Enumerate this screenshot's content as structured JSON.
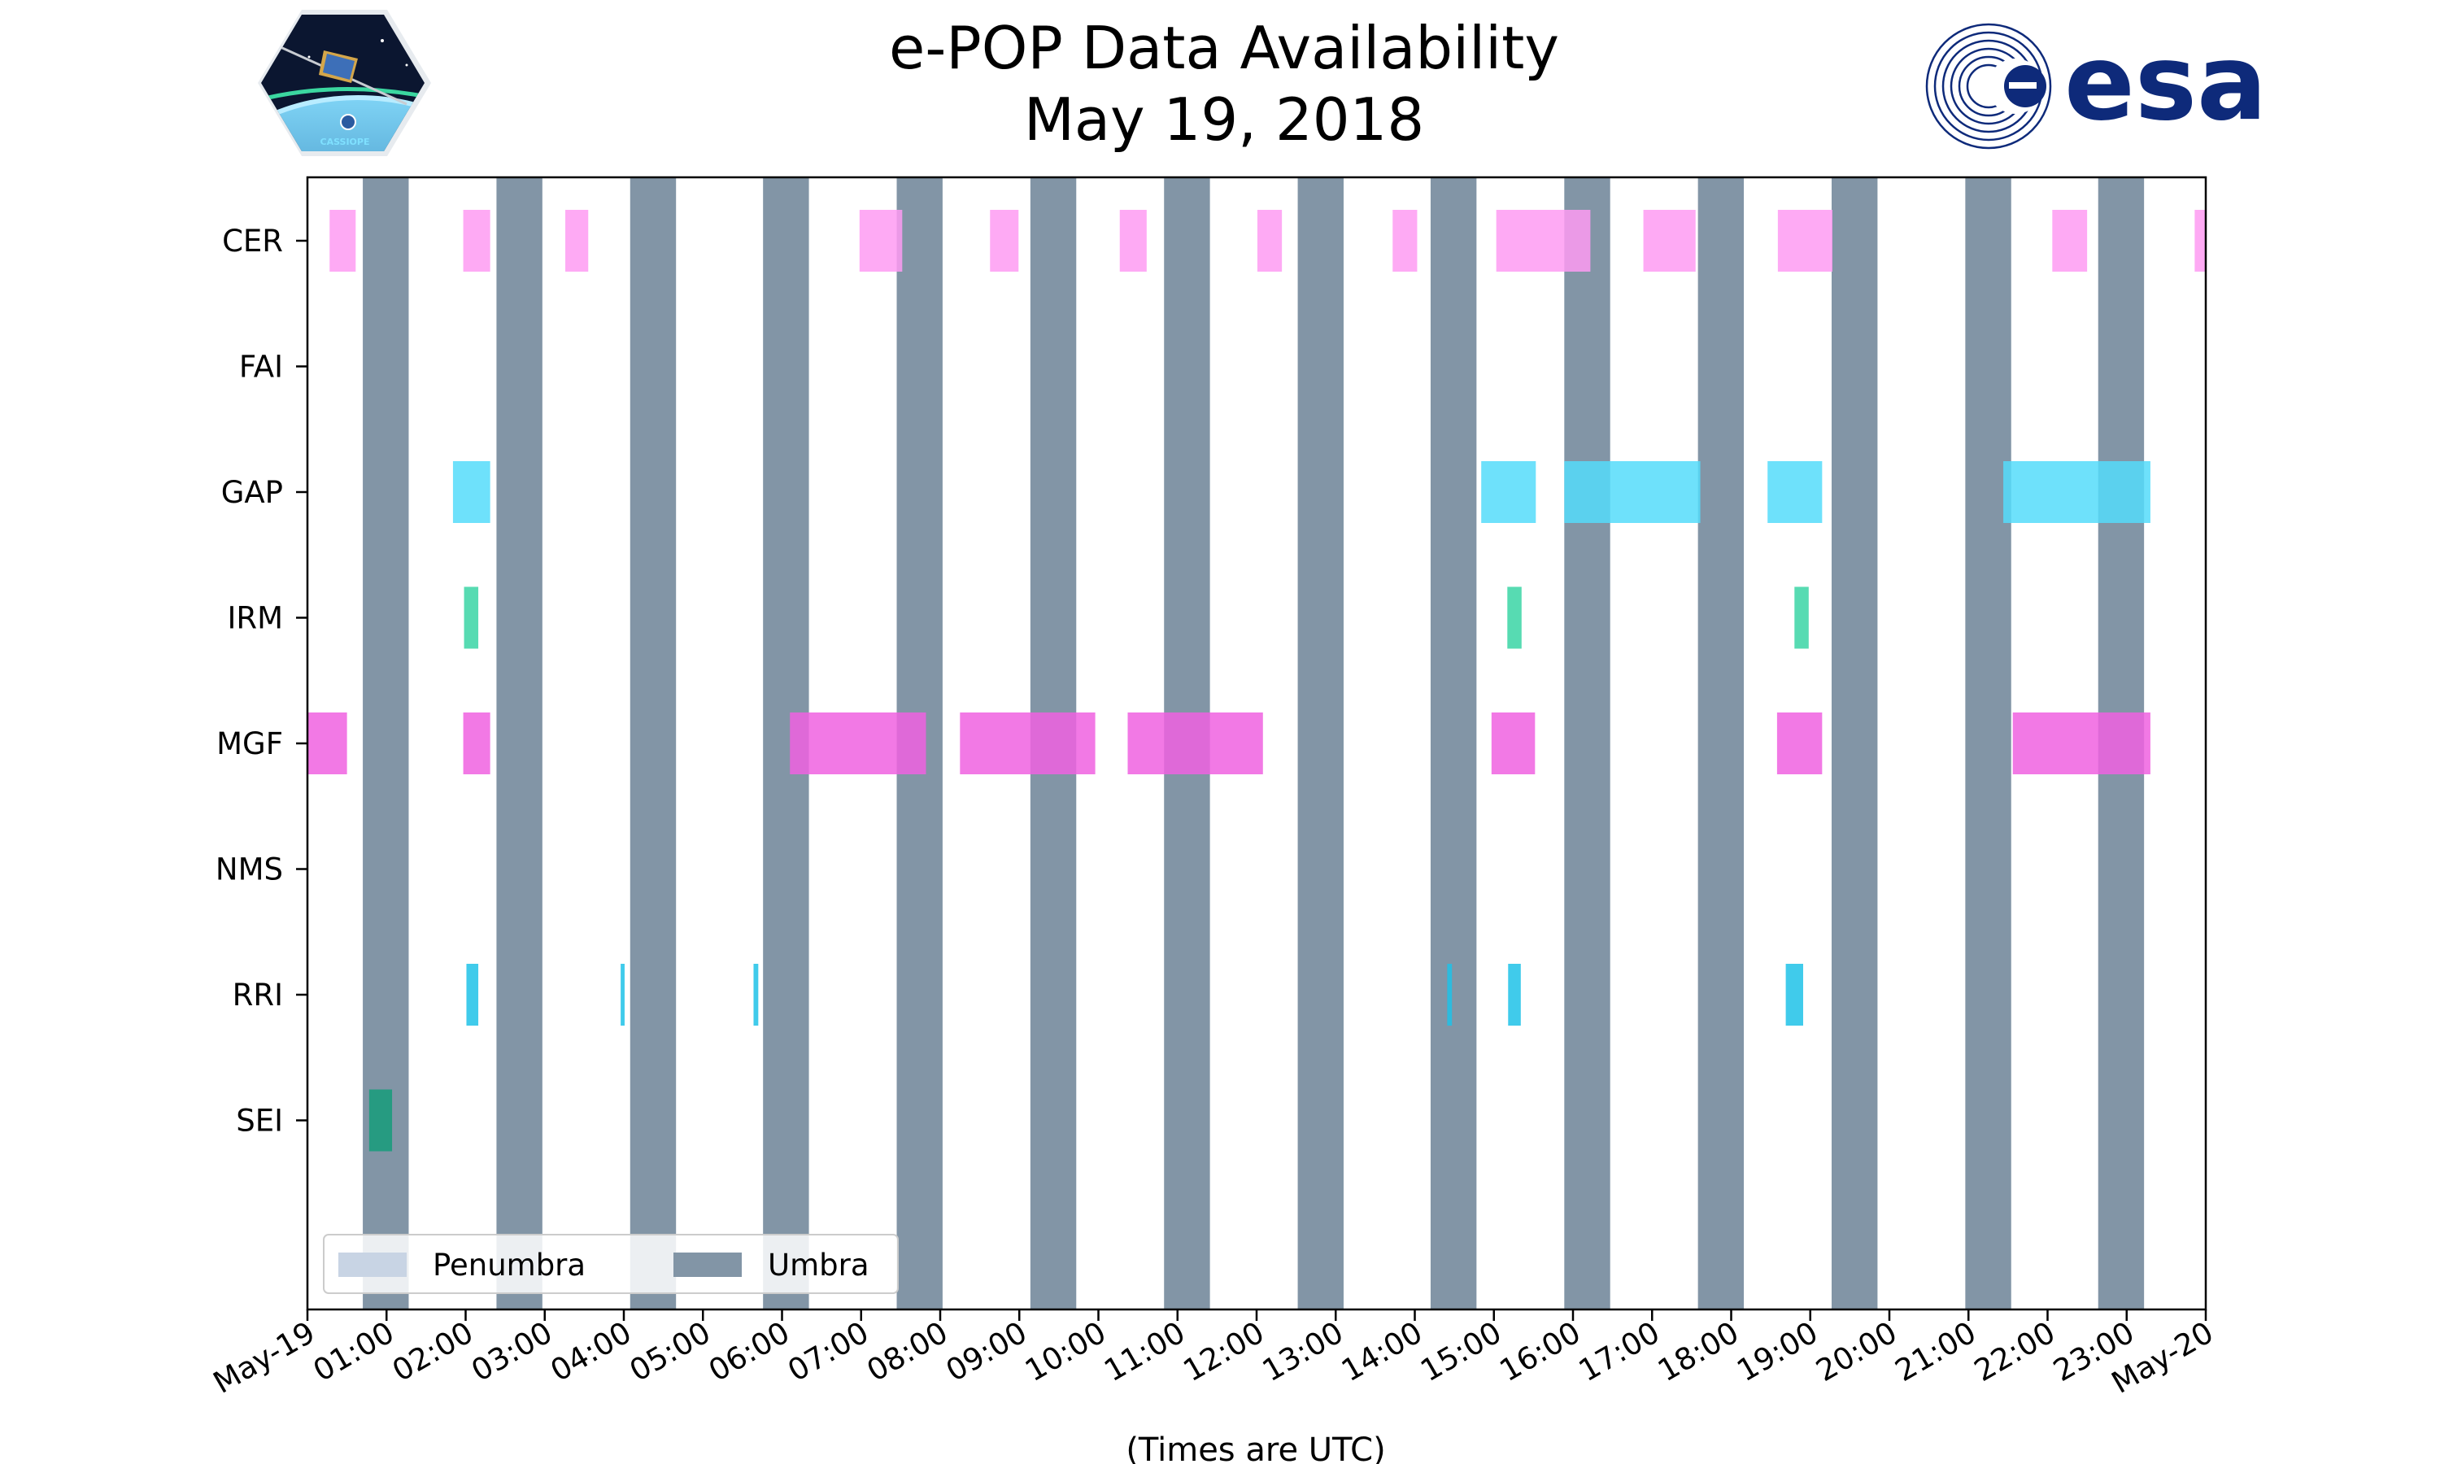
{
  "chart_data": {
    "type": "timeline",
    "title": "e-POP Data Availability",
    "subtitle": "May 19, 2018",
    "xlabel": "(Times are UTC)",
    "x_unit": "hours since 2018-05-19 00:00 UTC",
    "xlim": [
      0,
      24
    ],
    "x_ticks": [
      {
        "value": 0,
        "label": "May-19"
      },
      {
        "value": 1,
        "label": "01:00"
      },
      {
        "value": 2,
        "label": "02:00"
      },
      {
        "value": 3,
        "label": "03:00"
      },
      {
        "value": 4,
        "label": "04:00"
      },
      {
        "value": 5,
        "label": "05:00"
      },
      {
        "value": 6,
        "label": "06:00"
      },
      {
        "value": 7,
        "label": "07:00"
      },
      {
        "value": 8,
        "label": "08:00"
      },
      {
        "value": 9,
        "label": "09:00"
      },
      {
        "value": 10,
        "label": "10:00"
      },
      {
        "value": 11,
        "label": "11:00"
      },
      {
        "value": 12,
        "label": "12:00"
      },
      {
        "value": 13,
        "label": "13:00"
      },
      {
        "value": 14,
        "label": "14:00"
      },
      {
        "value": 15,
        "label": "15:00"
      },
      {
        "value": 16,
        "label": "16:00"
      },
      {
        "value": 17,
        "label": "17:00"
      },
      {
        "value": 18,
        "label": "18:00"
      },
      {
        "value": 19,
        "label": "19:00"
      },
      {
        "value": 20,
        "label": "20:00"
      },
      {
        "value": 21,
        "label": "21:00"
      },
      {
        "value": 22,
        "label": "22:00"
      },
      {
        "value": 23,
        "label": "23:00"
      },
      {
        "value": 24,
        "label": "May-20"
      }
    ],
    "instruments": [
      "CER",
      "FAI",
      "GAP",
      "IRM",
      "MGF",
      "NMS",
      "RRI",
      "SEI"
    ],
    "legend": {
      "placement": "lower-left",
      "entries": [
        {
          "label": "Penumbra",
          "color": "#c8d4e4"
        },
        {
          "label": "Umbra",
          "color": "#8295a6"
        }
      ]
    },
    "umbra": [
      [
        0.7,
        1.28
      ],
      [
        2.39,
        2.97
      ],
      [
        4.08,
        4.66
      ],
      [
        5.76,
        6.34
      ],
      [
        7.45,
        8.03
      ],
      [
        9.14,
        9.72
      ],
      [
        10.83,
        11.41
      ],
      [
        12.52,
        13.1
      ],
      [
        14.2,
        14.78
      ],
      [
        15.89,
        16.47
      ],
      [
        17.58,
        18.16
      ],
      [
        19.27,
        19.85
      ],
      [
        20.96,
        21.54
      ],
      [
        22.64,
        23.22
      ]
    ],
    "series": [
      {
        "name": "CER",
        "color": "#fe9bf2",
        "intervals": [
          [
            0.28,
            0.61
          ],
          [
            1.97,
            2.31
          ],
          [
            3.26,
            3.55
          ],
          [
            6.98,
            7.52
          ],
          [
            8.63,
            8.99
          ],
          [
            10.27,
            10.61
          ],
          [
            12.01,
            12.32
          ],
          [
            13.72,
            14.03
          ],
          [
            15.03,
            16.22
          ],
          [
            16.89,
            17.55
          ],
          [
            18.59,
            19.28
          ],
          [
            22.06,
            22.5
          ],
          [
            23.86,
            24.0
          ]
        ]
      },
      {
        "name": "FAI",
        "color": "#fe9bf2",
        "intervals": []
      },
      {
        "name": "GAP",
        "color": "#55dcfa",
        "intervals": [
          [
            1.84,
            2.31
          ],
          [
            14.84,
            15.53
          ],
          [
            15.89,
            17.61
          ],
          [
            18.46,
            19.15
          ],
          [
            21.44,
            23.3
          ]
        ]
      },
      {
        "name": "IRM",
        "color": "#3ad5a5",
        "intervals": [
          [
            1.98,
            2.16
          ],
          [
            15.17,
            15.35
          ],
          [
            18.8,
            18.98
          ]
        ]
      },
      {
        "name": "MGF",
        "color": "#f062e0",
        "intervals": [
          [
            0.0,
            0.5
          ],
          [
            1.97,
            2.31
          ],
          [
            6.1,
            7.82
          ],
          [
            8.25,
            9.96
          ],
          [
            10.37,
            12.08
          ],
          [
            14.97,
            15.52
          ],
          [
            18.58,
            19.15
          ],
          [
            21.56,
            23.3
          ]
        ]
      },
      {
        "name": "NMS",
        "color": "#f062e0",
        "intervals": []
      },
      {
        "name": "RRI",
        "color": "#1fc2e8",
        "intervals": [
          [
            2.01,
            2.16
          ],
          [
            3.96,
            4.01
          ],
          [
            5.64,
            5.7
          ],
          [
            14.41,
            14.47
          ],
          [
            15.18,
            15.34
          ],
          [
            18.69,
            18.91
          ]
        ]
      },
      {
        "name": "SEI",
        "color": "#169c7a",
        "intervals": [
          [
            0.78,
            1.07
          ]
        ]
      }
    ]
  },
  "logos": {
    "left": {
      "name": "cassiope-mission-logo",
      "text": "CASSIOPE"
    },
    "right": {
      "name": "esa-logo",
      "text": "esa",
      "color": "#0e2a7a"
    }
  }
}
